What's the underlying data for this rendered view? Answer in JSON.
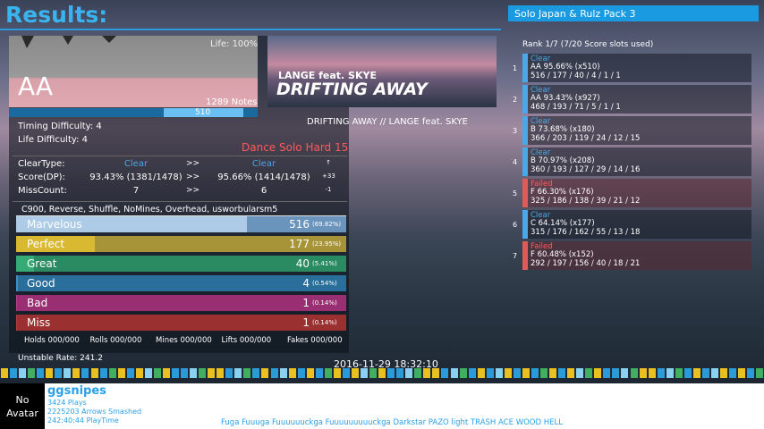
{
  "header": {
    "title": "Results:",
    "pack": "Solo Japan & Rulz Pack 3"
  },
  "life_graph": {
    "life": "Life: 100%",
    "grade": "AA",
    "notes": "1289 Notes",
    "combo": "510"
  },
  "difficulty": {
    "timing": "Timing Difficulty: 4",
    "life": "Life Difficulty: 4"
  },
  "banner": {
    "artist": "LANGE feat. SKYE",
    "title": "DRIFTING AWAY"
  },
  "song": "DRIFTING AWAY // LANGE feat. SKYE",
  "chart": "Dance Solo Hard 15",
  "compare": {
    "rows": [
      [
        "ClearType:",
        "Clear",
        ">>",
        "Clear",
        "↑"
      ],
      [
        "Score(DP):",
        "93.43% (1381/1478)",
        ">>",
        "95.66% (1414/1478)",
        "+33"
      ],
      [
        "MissCount:",
        "7",
        ">>",
        "6",
        "-1"
      ]
    ]
  },
  "modifiers": "C900, Reverse, Shuffle, NoMines, Overhead, usworbularsm5",
  "judgments": [
    {
      "name": "Marvelous",
      "count": 516,
      "percent": 69.82,
      "percent_label": "(69.82%)"
    },
    {
      "name": "Perfect",
      "count": 177,
      "percent": 23.95,
      "percent_label": "(23.95%)"
    },
    {
      "name": "Great",
      "count": 40,
      "percent": 5.41,
      "percent_label": "(5.41%)"
    },
    {
      "name": "Good",
      "count": 4,
      "percent": 0.54,
      "percent_label": "(0.54%)"
    },
    {
      "name": "Bad",
      "count": 1,
      "percent": 0.14,
      "percent_label": "(0.14%)"
    },
    {
      "name": "Miss",
      "count": 1,
      "percent": 0.14,
      "percent_label": "(0.14%)"
    }
  ],
  "other_counts": [
    "Holds 000/000",
    "Rolls 000/000",
    "Mines 000/000",
    "Lifts 000/000",
    "Fakes 000/000"
  ],
  "unstable_rate": "Unstable Rate: 241.2",
  "date": "2016-11-29 18:32:10",
  "scores": {
    "heading": "Rank 1/7 (7/20 Score slots used)",
    "rows": [
      {
        "rank": "1",
        "status": "Clear",
        "line1": "AA 95.66% (x510)",
        "line2": "516 / 177 / 40 / 4 / 1 / 1"
      },
      {
        "rank": "2",
        "status": "Clear",
        "line1": "AA 93.43% (x927)",
        "line2": "468 / 193 / 71 / 5 / 1 / 1"
      },
      {
        "rank": "3",
        "status": "Clear",
        "line1": "B 73.68% (x180)",
        "line2": "366 / 203 / 119 / 24 / 12 / 15"
      },
      {
        "rank": "4",
        "status": "Clear",
        "line1": "B 70.97% (x208)",
        "line2": "360 / 193 / 127 / 29 / 14 / 16"
      },
      {
        "rank": "5",
        "status": "Failed",
        "line1": "F 66.30% (x176)",
        "line2": "325 / 186 / 138 / 39 / 21 / 12"
      },
      {
        "rank": "6",
        "status": "Clear",
        "line1": "C 64.14% (x177)",
        "line2": "315 / 176 / 162 / 55 / 13 / 18"
      },
      {
        "rank": "7",
        "status": "Failed",
        "line1": "F 60.48% (x152)",
        "line2": "292 / 197 / 156 / 40 / 18 / 21"
      }
    ]
  },
  "profile": {
    "avatar": "No Avatar",
    "name": "ggsnipes",
    "plays": "3424 Plays",
    "arrows": "2225203 Arrows Smashed",
    "playtime": "242:40:44 PlayTime"
  },
  "courses": "Fuga Fuuuga Fuuuuuuckga Fuuuuuuuuuckga Darkstar PAZO light TRASH ACE WOOD HELL"
}
